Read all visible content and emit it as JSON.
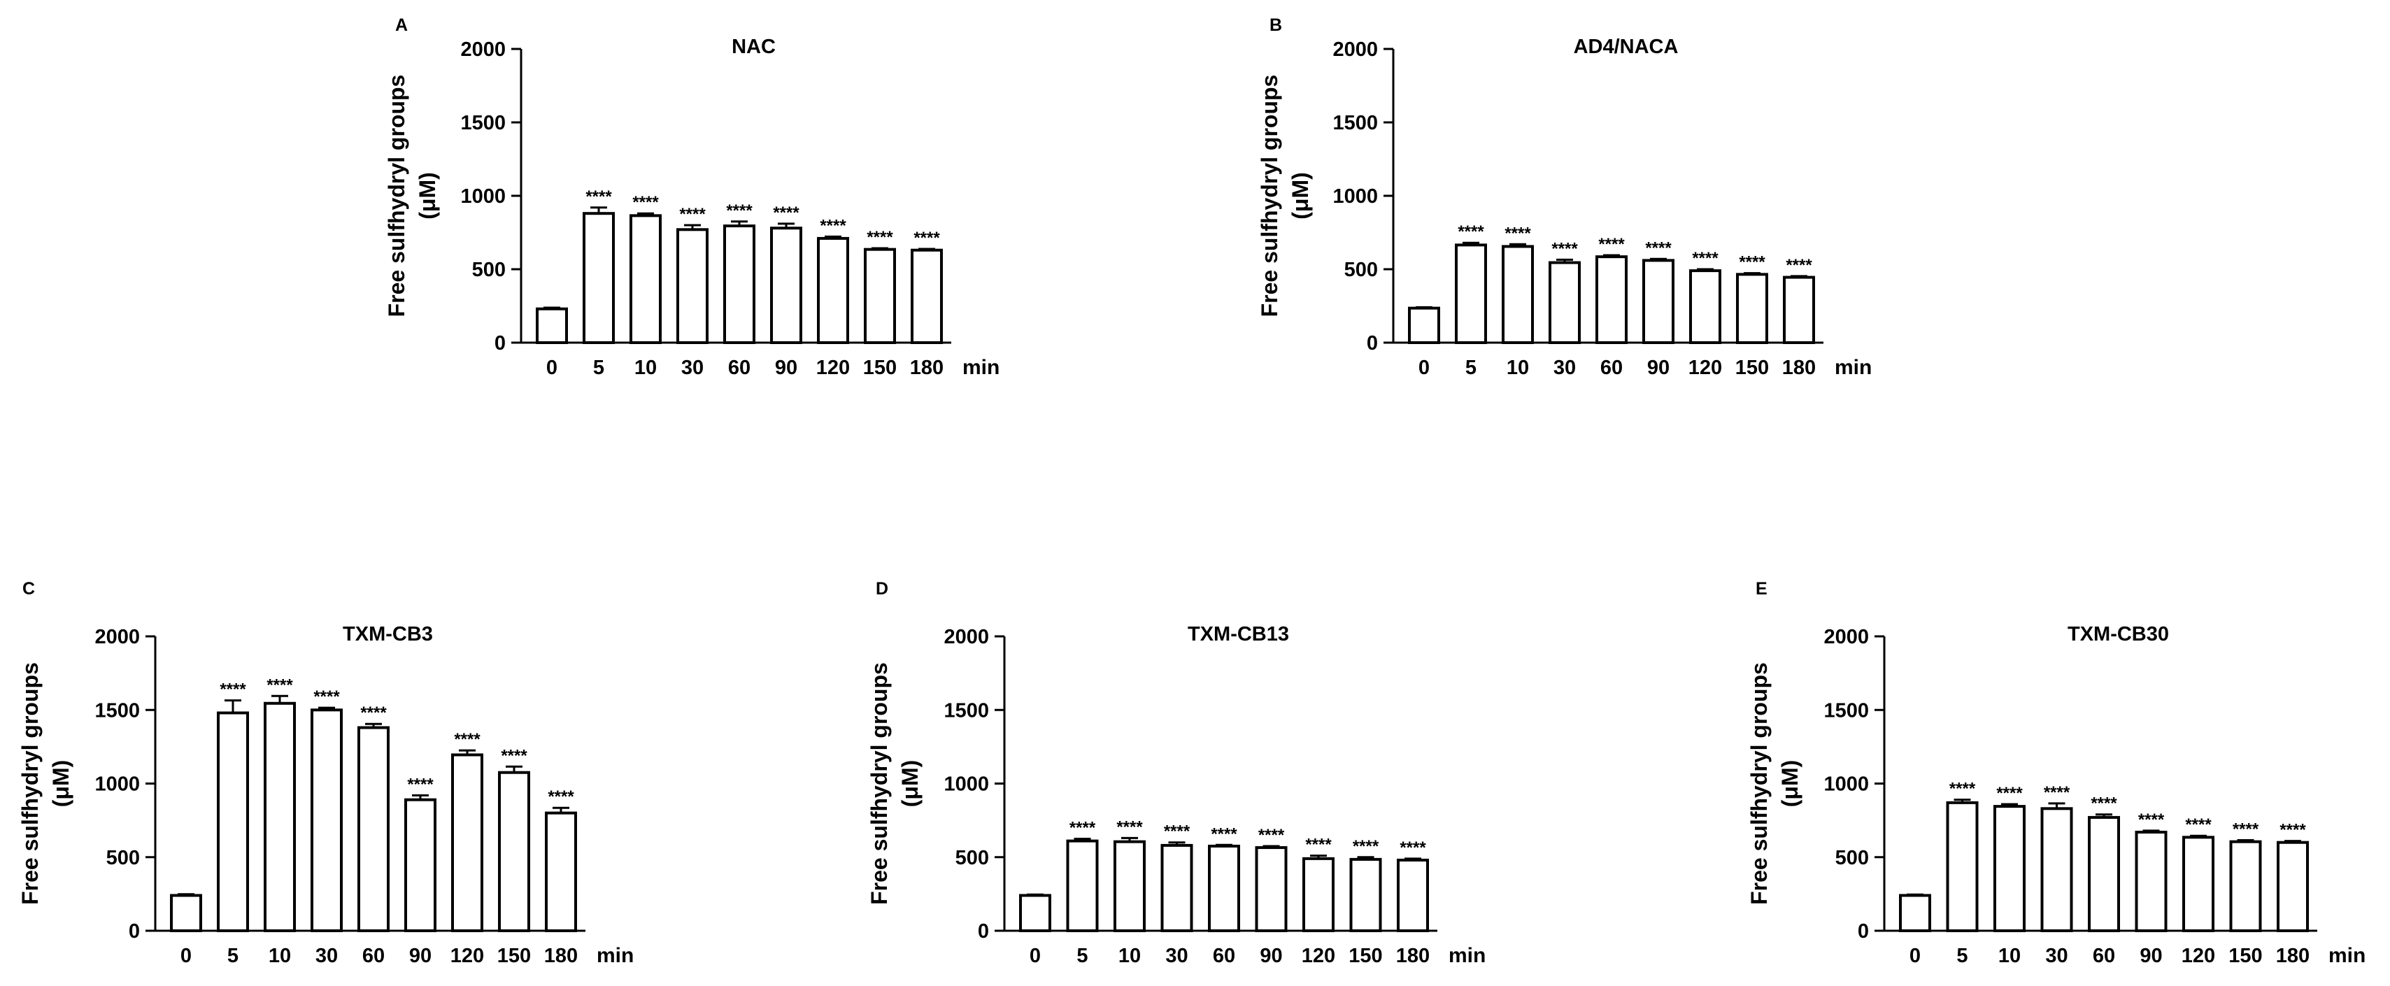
{
  "chart_data": [
    {
      "panel_label": "A",
      "type": "bar",
      "title": "NAC",
      "xlabel": "min",
      "ylabel": [
        "Free sulfhydryl groups",
        "(μM)"
      ],
      "ylim": [
        0,
        2000
      ],
      "yticks": [
        "0",
        "500",
        "1000",
        "1500",
        "2000"
      ],
      "categories": [
        "0",
        "5",
        "10",
        "30",
        "60",
        "90",
        "120",
        "150",
        "180"
      ],
      "values": [
        230,
        880,
        865,
        770,
        795,
        780,
        710,
        635,
        630
      ],
      "errors": [
        8,
        40,
        15,
        30,
        30,
        30,
        12,
        8,
        8
      ],
      "significance": [
        "",
        "****",
        "****",
        "****",
        "****",
        "****",
        "****",
        "****",
        "****"
      ]
    },
    {
      "panel_label": "B",
      "type": "bar",
      "title": "AD4/NACA",
      "xlabel": "min",
      "ylabel": [
        "Free sulfhydryl groups",
        "(μM)"
      ],
      "ylim": [
        0,
        2000
      ],
      "yticks": [
        "0",
        "500",
        "1000",
        "1500",
        "2000"
      ],
      "categories": [
        "0",
        "5",
        "10",
        "30",
        "60",
        "90",
        "120",
        "150",
        "180"
      ],
      "values": [
        235,
        665,
        655,
        545,
        585,
        560,
        490,
        465,
        445
      ],
      "errors": [
        6,
        15,
        15,
        20,
        10,
        10,
        10,
        8,
        8
      ],
      "significance": [
        "",
        "****",
        "****",
        "****",
        "****",
        "****",
        "****",
        "****",
        "****"
      ]
    },
    {
      "panel_label": "C",
      "type": "bar",
      "title": "TXM-CB3",
      "xlabel": "min",
      "ylabel": [
        "Free sulfhydryl groups",
        "(μM)"
      ],
      "ylim": [
        0,
        2000
      ],
      "yticks": [
        "0",
        "500",
        "1000",
        "1500",
        "2000"
      ],
      "categories": [
        "0",
        "5",
        "10",
        "30",
        "60",
        "90",
        "120",
        "150",
        "180"
      ],
      "values": [
        240,
        1480,
        1545,
        1500,
        1380,
        890,
        1195,
        1075,
        800
      ],
      "errors": [
        8,
        85,
        50,
        15,
        25,
        30,
        30,
        40,
        35
      ],
      "significance": [
        "",
        "****",
        "****",
        "****",
        "****",
        "****",
        "****",
        "****",
        "****"
      ]
    },
    {
      "panel_label": "D",
      "type": "bar",
      "title": "TXM-CB13",
      "xlabel": "min",
      "ylabel": [
        "Free sulfhydryl groups",
        "(μM)"
      ],
      "ylim": [
        0,
        2000
      ],
      "yticks": [
        "0",
        "500",
        "1000",
        "1500",
        "2000"
      ],
      "categories": [
        "0",
        "5",
        "10",
        "30",
        "60",
        "90",
        "120",
        "150",
        "180"
      ],
      "values": [
        240,
        610,
        605,
        580,
        575,
        565,
        490,
        485,
        480
      ],
      "errors": [
        6,
        15,
        25,
        20,
        8,
        10,
        20,
        15,
        10
      ],
      "significance": [
        "",
        "****",
        "****",
        "****",
        "****",
        "****",
        "****",
        "****",
        "****"
      ]
    },
    {
      "panel_label": "E",
      "type": "bar",
      "title": "TXM-CB30",
      "xlabel": "min",
      "ylabel": [
        "Free sulfhydryl groups",
        "(μM)"
      ],
      "ylim": [
        0,
        2000
      ],
      "yticks": [
        "0",
        "500",
        "1000",
        "1500",
        "2000"
      ],
      "categories": [
        "0",
        "5",
        "10",
        "30",
        "60",
        "90",
        "120",
        "150",
        "180"
      ],
      "values": [
        240,
        870,
        845,
        830,
        770,
        670,
        635,
        605,
        600
      ],
      "errors": [
        6,
        20,
        15,
        35,
        20,
        10,
        10,
        10,
        10
      ],
      "significance": [
        "",
        "****",
        "****",
        "****",
        "****",
        "****",
        "****",
        "****",
        "****"
      ]
    }
  ]
}
